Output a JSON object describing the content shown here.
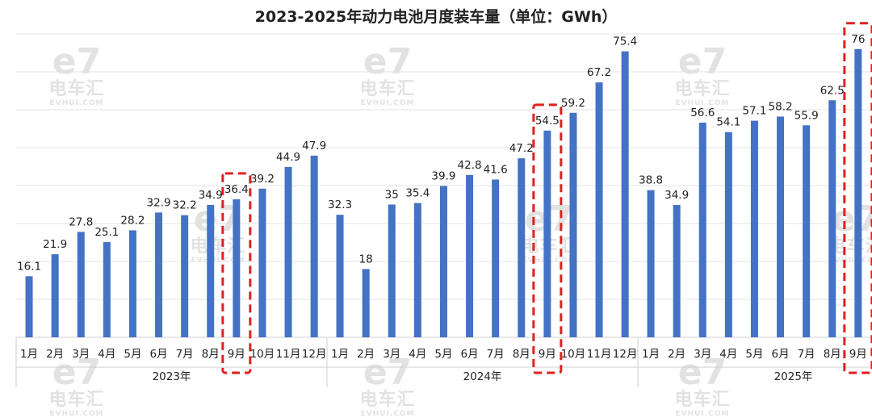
{
  "chart_data": {
    "type": "bar",
    "title": "2023-2025年动力电池月度装车量（单位：GWh）",
    "xlabel": "",
    "ylabel": "",
    "ylim": [
      0,
      80
    ],
    "grid": true,
    "bar_color": "#4472c4",
    "highlight_color": "#e02020",
    "highlight_style": "dashed-box",
    "groups": [
      {
        "year_label": "2023年",
        "months": [
          "1月",
          "2月",
          "3月",
          "4月",
          "5月",
          "6月",
          "7月",
          "8月",
          "9月",
          "10月",
          "11月",
          "12月"
        ],
        "values": [
          16.1,
          21.9,
          27.8,
          25.1,
          28.2,
          32.9,
          32.2,
          34.9,
          36.4,
          39.2,
          44.9,
          47.9
        ],
        "highlight_month": "9月"
      },
      {
        "year_label": "2024年",
        "months": [
          "1月",
          "2月",
          "3月",
          "4月",
          "5月",
          "6月",
          "7月",
          "8月",
          "9月",
          "10月",
          "11月",
          "12月"
        ],
        "values": [
          32.3,
          18,
          35,
          35.4,
          39.9,
          42.8,
          41.6,
          47.2,
          54.5,
          59.2,
          67.2,
          75.4
        ],
        "highlight_month": "9月"
      },
      {
        "year_label": "2025年",
        "months": [
          "1月",
          "2月",
          "3月",
          "4月",
          "5月",
          "6月",
          "7月",
          "8月",
          "9月"
        ],
        "values": [
          38.8,
          34.9,
          56.6,
          54.1,
          57.1,
          58.2,
          55.9,
          62.5,
          76
        ],
        "highlight_month": "9月"
      }
    ]
  },
  "watermark": {
    "logo": "e7",
    "name": "电车汇",
    "url": "EVHUI.COM"
  }
}
